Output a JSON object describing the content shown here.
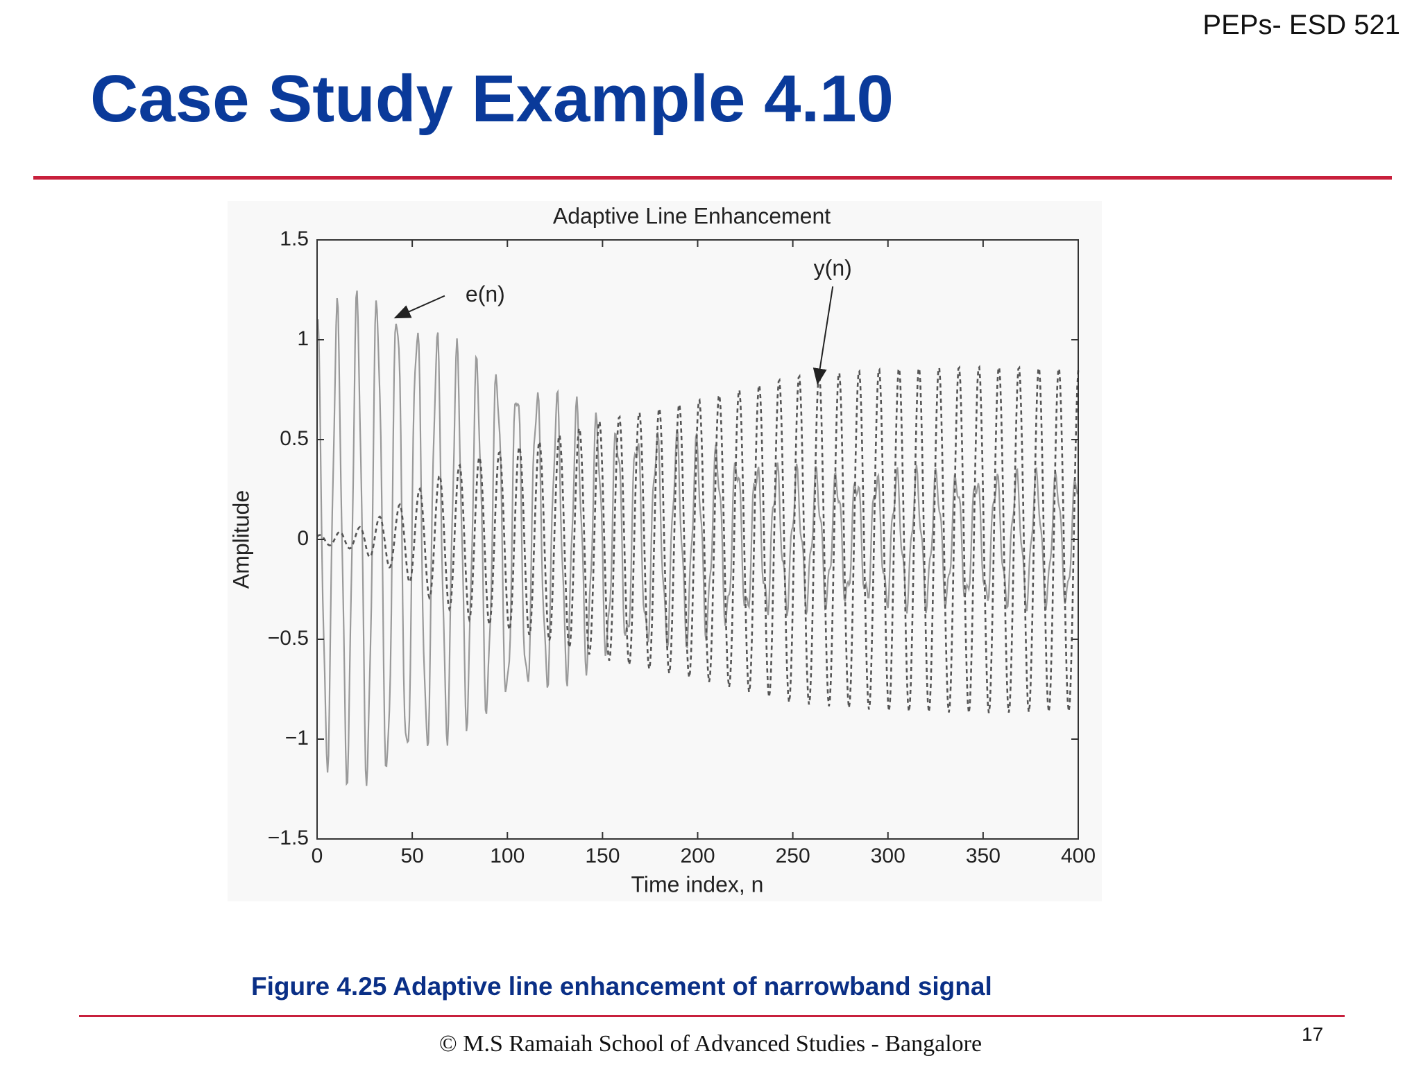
{
  "header": {
    "course_code": "PEPs- ESD 521",
    "title": "Case Study Example 4.10"
  },
  "caption": "Figure 4.25 Adaptive line enhancement of narrowband signal",
  "footer": {
    "copyright": "© M.S Ramaiah School of Advanced Studies - Bangalore",
    "page_number": "17"
  },
  "colors": {
    "title": "#0a3a9a",
    "caption": "#0a2f86",
    "rule": "#c8203c",
    "series_e": "#9a9a9a",
    "series_y": "#555555"
  },
  "chart_data": {
    "type": "line",
    "title": "Adaptive Line Enhancement",
    "xlabel": "Time index, n",
    "ylabel": "Amplitude",
    "xlim": [
      0,
      400
    ],
    "ylim": [
      -1.5,
      1.5
    ],
    "x_ticks": [
      0,
      50,
      100,
      150,
      200,
      250,
      300,
      350,
      400
    ],
    "x_tick_labels": [
      "0",
      "50",
      "100",
      "150",
      "200",
      "250",
      "300",
      "350",
      "400"
    ],
    "y_ticks": [
      1.5,
      1,
      0.5,
      0,
      -0.5,
      -1,
      -1.5
    ],
    "y_tick_labels": [
      "1.5",
      "1",
      "0.5",
      "0",
      "−0.5",
      "−1",
      "−1.5"
    ],
    "grid": false,
    "annotations": [
      {
        "text": "e(n)",
        "label_at": [
          78,
          1.22
        ],
        "arrow_to": [
          41,
          1.11
        ]
      },
      {
        "text": "y(n)",
        "label_at": [
          271,
          1.35
        ],
        "arrow_to": [
          263,
          0.78
        ]
      }
    ],
    "series": [
      {
        "name": "e(n)",
        "style": "solid",
        "envelope_x": [
          0,
          20,
          40,
          60,
          80,
          100,
          120,
          150,
          200,
          250,
          300,
          350,
          400
        ],
        "envelope_amplitude": [
          1.05,
          1.15,
          1.18,
          1.0,
          0.85,
          0.8,
          0.7,
          0.55,
          0.45,
          0.3,
          0.3,
          0.3,
          0.3
        ]
      },
      {
        "name": "y(n)",
        "style": "dashed",
        "envelope_x": [
          0,
          20,
          40,
          60,
          80,
          100,
          120,
          150,
          200,
          250,
          300,
          350,
          400
        ],
        "envelope_amplitude": [
          0.02,
          0.05,
          0.15,
          0.3,
          0.4,
          0.45,
          0.5,
          0.6,
          0.7,
          0.82,
          0.86,
          0.87,
          0.86
        ]
      }
    ]
  }
}
